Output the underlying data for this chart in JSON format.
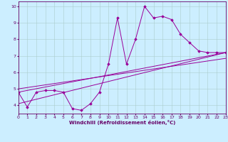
{
  "xlabel": "Windchill (Refroidissement éolien,°C)",
  "ylabel": "",
  "bg_color": "#cceeff",
  "line_color": "#990099",
  "spine_color": "#660066",
  "grid_color": "#aacccc",
  "xmin": 0,
  "xmax": 23,
  "ymin": 3.5,
  "ymax": 10.3,
  "yticks": [
    4,
    5,
    6,
    7,
    8,
    9,
    10
  ],
  "xticks": [
    0,
    1,
    2,
    3,
    4,
    5,
    6,
    7,
    8,
    9,
    10,
    11,
    12,
    13,
    14,
    15,
    16,
    17,
    18,
    19,
    20,
    21,
    22,
    23
  ],
  "series1_x": [
    0,
    1,
    2,
    3,
    4,
    5,
    6,
    7,
    8,
    9,
    10,
    11,
    12,
    13,
    14,
    15,
    16,
    17,
    18,
    19,
    20,
    21,
    22,
    23
  ],
  "series1_y": [
    4.8,
    3.9,
    4.8,
    4.9,
    4.9,
    4.8,
    3.8,
    3.7,
    4.1,
    4.8,
    6.5,
    9.3,
    6.5,
    8.0,
    10.0,
    9.3,
    9.4,
    9.2,
    8.3,
    7.8,
    7.3,
    7.2,
    7.2,
    7.2
  ],
  "series2_x": [
    0,
    23
  ],
  "series2_y": [
    4.8,
    7.2
  ],
  "series3_x": [
    0,
    23
  ],
  "series3_y": [
    4.1,
    7.2
  ],
  "series4_x": [
    0,
    23
  ],
  "series4_y": [
    5.0,
    6.85
  ],
  "tick_fontsize": 4.5,
  "xlabel_fontsize": 5.0,
  "marker": "D",
  "markersize": 1.8,
  "linewidth": 0.7
}
